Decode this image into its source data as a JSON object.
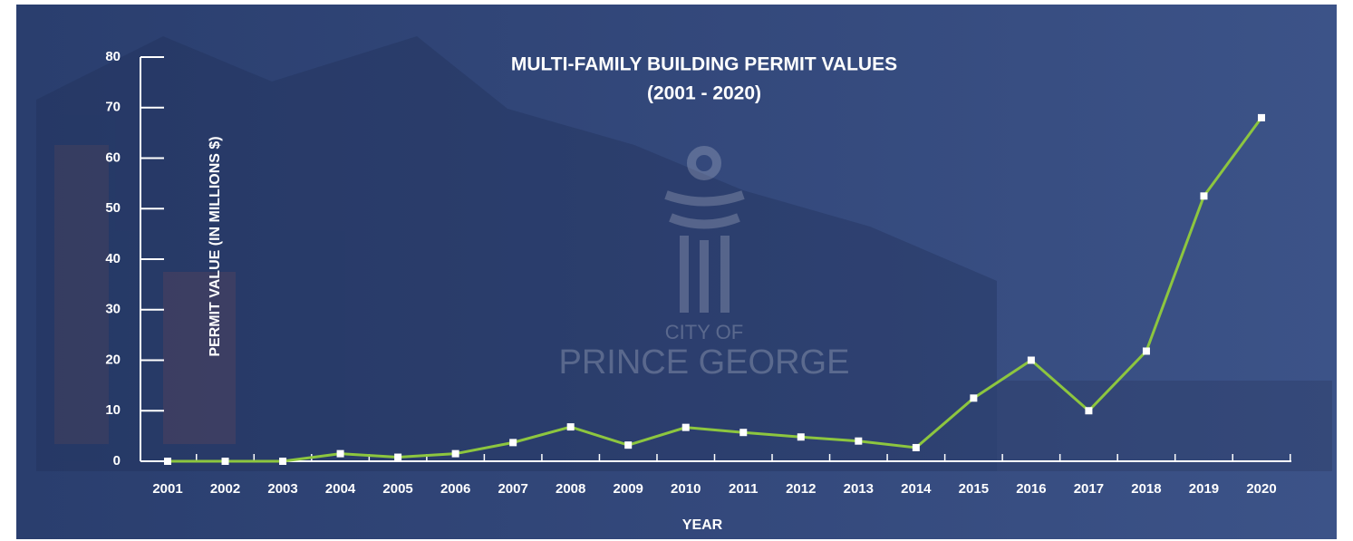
{
  "chart_data": {
    "type": "line",
    "title": "MULTI-FAMILY BUILDING PERMIT VALUES",
    "subtitle": "(2001 - 2020)",
    "y_label": "PERMIT VALUE (IN MILLIONS $)",
    "x_label": "YEAR",
    "annotations": [
      "CITY OF",
      "PRINCE GEORGE"
    ],
    "categories": [
      "2001",
      "2002",
      "2003",
      "2004",
      "2005",
      "2006",
      "2007",
      "2008",
      "2009",
      "2010",
      "2011",
      "2012",
      "2013",
      "2014",
      "2015",
      "2016",
      "2017",
      "2018",
      "2019",
      "2020"
    ],
    "values": [
      0,
      0,
      0,
      1.5,
      0.8,
      1.5,
      3.7,
      6.8,
      3.2,
      6.7,
      5.7,
      4.8,
      4,
      2.7,
      12.5,
      20,
      10,
      21.8,
      52.5,
      68
    ],
    "color": "#8dc63f",
    "marker_color": "#ffffff",
    "ylim": [
      0,
      80
    ],
    "yticks": [
      0,
      10,
      20,
      30,
      40,
      50,
      60,
      70,
      80
    ]
  }
}
